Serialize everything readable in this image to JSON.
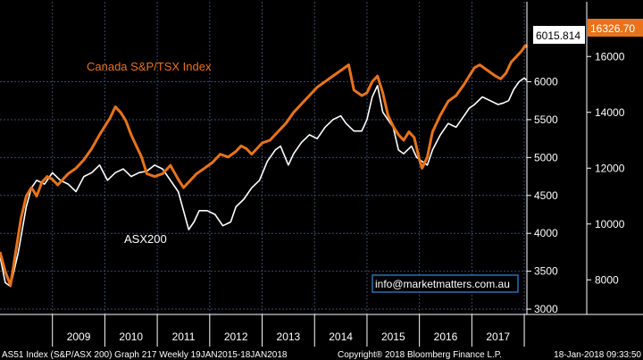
{
  "chart_data": {
    "type": "line",
    "x_labels": [
      "2009",
      "2010",
      "2011",
      "2012",
      "2013",
      "2014",
      "2015",
      "2016",
      "2017"
    ],
    "x_range": [
      2008.0,
      2018.05
    ],
    "y_left": {
      "ticks": [
        3000,
        3500,
        4000,
        4500,
        5000,
        5500,
        6000
      ],
      "range": [
        2930,
        7055
      ]
    },
    "y_right": {
      "ticks": [
        8000,
        10000,
        12000,
        14000,
        16000
      ],
      "range": [
        6760,
        17960
      ]
    },
    "grid": true,
    "series": [
      {
        "name": "ASX200",
        "axis": "left",
        "color": "#ffffff",
        "points": [
          [
            2008.0,
            3700
          ],
          [
            2008.1,
            3350
          ],
          [
            2008.2,
            3300
          ],
          [
            2008.35,
            3750
          ],
          [
            2008.5,
            4350
          ],
          [
            2008.6,
            4600
          ],
          [
            2008.7,
            4700
          ],
          [
            2008.85,
            4650
          ],
          [
            2009.0,
            4800
          ],
          [
            2009.15,
            4700
          ],
          [
            2009.3,
            4650
          ],
          [
            2009.45,
            4550
          ],
          [
            2009.6,
            4750
          ],
          [
            2009.75,
            4800
          ],
          [
            2009.9,
            4900
          ],
          [
            2010.05,
            4700
          ],
          [
            2010.2,
            4800
          ],
          [
            2010.35,
            4850
          ],
          [
            2010.5,
            4750
          ],
          [
            2010.65,
            4800
          ],
          [
            2010.8,
            4820
          ],
          [
            2010.95,
            4900
          ],
          [
            2011.1,
            4850
          ],
          [
            2011.25,
            4700
          ],
          [
            2011.4,
            4550
          ],
          [
            2011.5,
            4300
          ],
          [
            2011.6,
            4050
          ],
          [
            2011.7,
            4150
          ],
          [
            2011.8,
            4300
          ],
          [
            2011.95,
            4300
          ],
          [
            2012.1,
            4250
          ],
          [
            2012.25,
            4100
          ],
          [
            2012.4,
            4150
          ],
          [
            2012.5,
            4350
          ],
          [
            2012.65,
            4450
          ],
          [
            2012.8,
            4600
          ],
          [
            2012.95,
            4700
          ],
          [
            2013.1,
            4950
          ],
          [
            2013.25,
            5100
          ],
          [
            2013.35,
            5150
          ],
          [
            2013.5,
            4900
          ],
          [
            2013.6,
            5050
          ],
          [
            2013.75,
            5200
          ],
          [
            2013.9,
            5300
          ],
          [
            2014.05,
            5250
          ],
          [
            2014.2,
            5400
          ],
          [
            2014.35,
            5500
          ],
          [
            2014.5,
            5550
          ],
          [
            2014.6,
            5450
          ],
          [
            2014.75,
            5350
          ],
          [
            2014.9,
            5350
          ],
          [
            2015.0,
            5500
          ],
          [
            2015.1,
            5800
          ],
          [
            2015.2,
            5950
          ],
          [
            2015.3,
            5600
          ],
          [
            2015.4,
            5500
          ],
          [
            2015.5,
            5400
          ],
          [
            2015.6,
            5100
          ],
          [
            2015.7,
            5050
          ],
          [
            2015.85,
            5150
          ],
          [
            2015.95,
            5000
          ],
          [
            2016.05,
            4950
          ],
          [
            2016.15,
            4900
          ],
          [
            2016.25,
            5100
          ],
          [
            2016.4,
            5300
          ],
          [
            2016.55,
            5450
          ],
          [
            2016.7,
            5400
          ],
          [
            2016.85,
            5550
          ],
          [
            2016.95,
            5650
          ],
          [
            2017.05,
            5700
          ],
          [
            2017.2,
            5800
          ],
          [
            2017.35,
            5750
          ],
          [
            2017.5,
            5700
          ],
          [
            2017.6,
            5720
          ],
          [
            2017.7,
            5750
          ],
          [
            2017.8,
            5900
          ],
          [
            2017.9,
            6000
          ],
          [
            2018.0,
            6050
          ],
          [
            2018.05,
            6015.814
          ]
        ]
      },
      {
        "name": "Canada S&P/TSX Index",
        "axis": "right",
        "color": "#e8731a",
        "points": [
          [
            2008.0,
            9000
          ],
          [
            2008.1,
            8300
          ],
          [
            2008.2,
            7800
          ],
          [
            2008.3,
            9000
          ],
          [
            2008.4,
            10200
          ],
          [
            2008.5,
            11000
          ],
          [
            2008.6,
            11300
          ],
          [
            2008.7,
            11000
          ],
          [
            2008.8,
            11500
          ],
          [
            2008.9,
            11700
          ],
          [
            2009.0,
            11600
          ],
          [
            2009.1,
            11400
          ],
          [
            2009.2,
            11600
          ],
          [
            2009.3,
            11800
          ],
          [
            2009.45,
            12000
          ],
          [
            2009.6,
            12300
          ],
          [
            2009.75,
            12700
          ],
          [
            2009.9,
            13200
          ],
          [
            2010.0,
            13500
          ],
          [
            2010.1,
            13800
          ],
          [
            2010.2,
            14200
          ],
          [
            2010.3,
            14000
          ],
          [
            2010.4,
            13700
          ],
          [
            2010.5,
            13200
          ],
          [
            2010.6,
            12800
          ],
          [
            2010.7,
            12400
          ],
          [
            2010.8,
            11800
          ],
          [
            2010.95,
            11700
          ],
          [
            2011.1,
            11800
          ],
          [
            2011.25,
            12100
          ],
          [
            2011.4,
            11600
          ],
          [
            2011.5,
            11300
          ],
          [
            2011.6,
            11500
          ],
          [
            2011.75,
            11800
          ],
          [
            2011.9,
            12000
          ],
          [
            2012.05,
            12200
          ],
          [
            2012.2,
            12500
          ],
          [
            2012.35,
            12400
          ],
          [
            2012.5,
            12600
          ],
          [
            2012.6,
            12800
          ],
          [
            2012.7,
            12700
          ],
          [
            2012.8,
            12500
          ],
          [
            2012.9,
            12700
          ],
          [
            2013.0,
            12900
          ],
          [
            2013.15,
            13000
          ],
          [
            2013.3,
            13300
          ],
          [
            2013.45,
            13600
          ],
          [
            2013.6,
            14000
          ],
          [
            2013.75,
            14300
          ],
          [
            2013.9,
            14600
          ],
          [
            2014.05,
            14900
          ],
          [
            2014.2,
            15100
          ],
          [
            2014.35,
            15300
          ],
          [
            2014.5,
            15500
          ],
          [
            2014.65,
            15700
          ],
          [
            2014.75,
            14800
          ],
          [
            2014.9,
            14600
          ],
          [
            2015.0,
            14700
          ],
          [
            2015.1,
            15100
          ],
          [
            2015.2,
            15300
          ],
          [
            2015.3,
            14700
          ],
          [
            2015.4,
            13900
          ],
          [
            2015.5,
            13500
          ],
          [
            2015.6,
            13200
          ],
          [
            2015.7,
            13000
          ],
          [
            2015.8,
            13300
          ],
          [
            2015.9,
            13100
          ],
          [
            2016.0,
            12300
          ],
          [
            2016.05,
            12000
          ],
          [
            2016.15,
            12400
          ],
          [
            2016.25,
            13300
          ],
          [
            2016.4,
            13900
          ],
          [
            2016.55,
            14400
          ],
          [
            2016.7,
            14600
          ],
          [
            2016.85,
            15000
          ],
          [
            2016.95,
            15300
          ],
          [
            2017.05,
            15600
          ],
          [
            2017.15,
            15700
          ],
          [
            2017.3,
            15500
          ],
          [
            2017.45,
            15300
          ],
          [
            2017.55,
            15200
          ],
          [
            2017.65,
            15400
          ],
          [
            2017.75,
            15800
          ],
          [
            2017.85,
            16000
          ],
          [
            2017.95,
            16200
          ],
          [
            2018.02,
            16400
          ],
          [
            2018.05,
            16326.7
          ]
        ]
      }
    ],
    "annotations": [
      {
        "text": "Canada S&P/TSX Index",
        "color": "#e8731a"
      },
      {
        "text": "ASX200",
        "color": "#ffffff"
      }
    ],
    "last_values": {
      "left": "6015.814",
      "right": "16326.70"
    },
    "watermark": "info@marketmatters.com.au",
    "footer": {
      "left": "AS51 Index (S&P/ASX 200) Graph 217  Weekly 19JAN2015-18JAN2018",
      "center": "Copyright® 2018 Bloomberg Finance L.P.",
      "right": "18-Jan-2018 09:33:50"
    }
  }
}
